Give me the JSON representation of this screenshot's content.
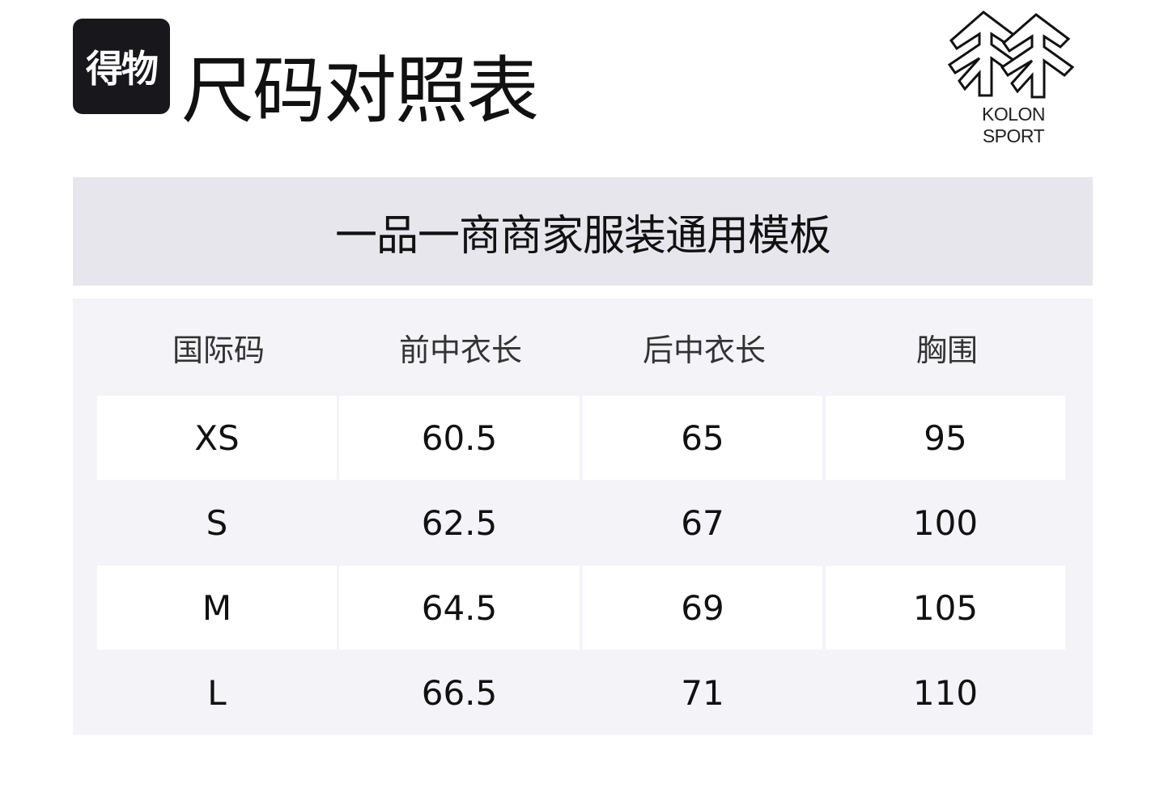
{
  "header": {
    "platform_logo_text": "得物",
    "title": "尺码对照表",
    "brand_logo_text": "KOLON SPORT"
  },
  "banner": {
    "text": "一品一商商家服装通用模板"
  },
  "table": {
    "columns": [
      "国际码",
      "前中衣长",
      "后中衣长",
      "胸围"
    ],
    "rows": [
      [
        "XS",
        "60.5",
        "65",
        "95"
      ],
      [
        "S",
        "62.5",
        "67",
        "100"
      ],
      [
        "M",
        "64.5",
        "69",
        "105"
      ],
      [
        "L",
        "66.5",
        "71",
        "110"
      ]
    ]
  },
  "colors": {
    "banner_bg": "#e6e6ec",
    "table_bg": "#f3f3f8",
    "cell_highlight": "#ffffff",
    "badge_bg": "#18181c"
  }
}
